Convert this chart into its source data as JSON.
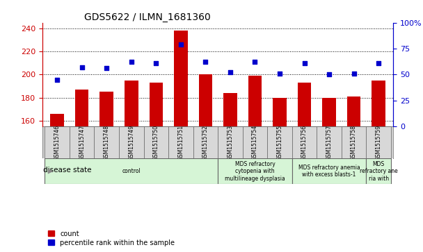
{
  "title": "GDS5622 / ILMN_1681360",
  "samples": [
    "GSM1515746",
    "GSM1515747",
    "GSM1515748",
    "GSM1515749",
    "GSM1515750",
    "GSM1515751",
    "GSM1515752",
    "GSM1515753",
    "GSM1515754",
    "GSM1515755",
    "GSM1515756",
    "GSM1515757",
    "GSM1515758",
    "GSM1515759"
  ],
  "counts": [
    166,
    187,
    185,
    195,
    193,
    238,
    200,
    184,
    199,
    180,
    193,
    180,
    181,
    195
  ],
  "percentiles": [
    45,
    57,
    56,
    62,
    61,
    79,
    62,
    52,
    62,
    51,
    61,
    50,
    51,
    61
  ],
  "ylim_left": [
    155,
    245
  ],
  "ylim_right": [
    0,
    100
  ],
  "yticks_left": [
    160,
    180,
    200,
    220,
    240
  ],
  "yticks_right": [
    0,
    25,
    50,
    75,
    100
  ],
  "bar_color": "#cc0000",
  "dot_color": "#0000cc",
  "bg_color": "#ffffff",
  "grid_color": "#000000",
  "disease_groups": [
    {
      "label": "control",
      "start": 0,
      "end": 6,
      "color": "#d6f5d6"
    },
    {
      "label": "MDS refractory\ncytopenia with\nmultilineage dysplasia",
      "start": 7,
      "end": 9,
      "color": "#d6f5d6"
    },
    {
      "label": "MDS refractory anemia\nwith excess blasts-1",
      "start": 10,
      "end": 12,
      "color": "#d6f5d6"
    },
    {
      "label": "MDS\nrefractory ane\nria with",
      "start": 13,
      "end": 13,
      "color": "#d6f5d6"
    }
  ],
  "legend_count_label": "count",
  "legend_pct_label": "percentile rank within the sample",
  "disease_state_label": "disease state"
}
